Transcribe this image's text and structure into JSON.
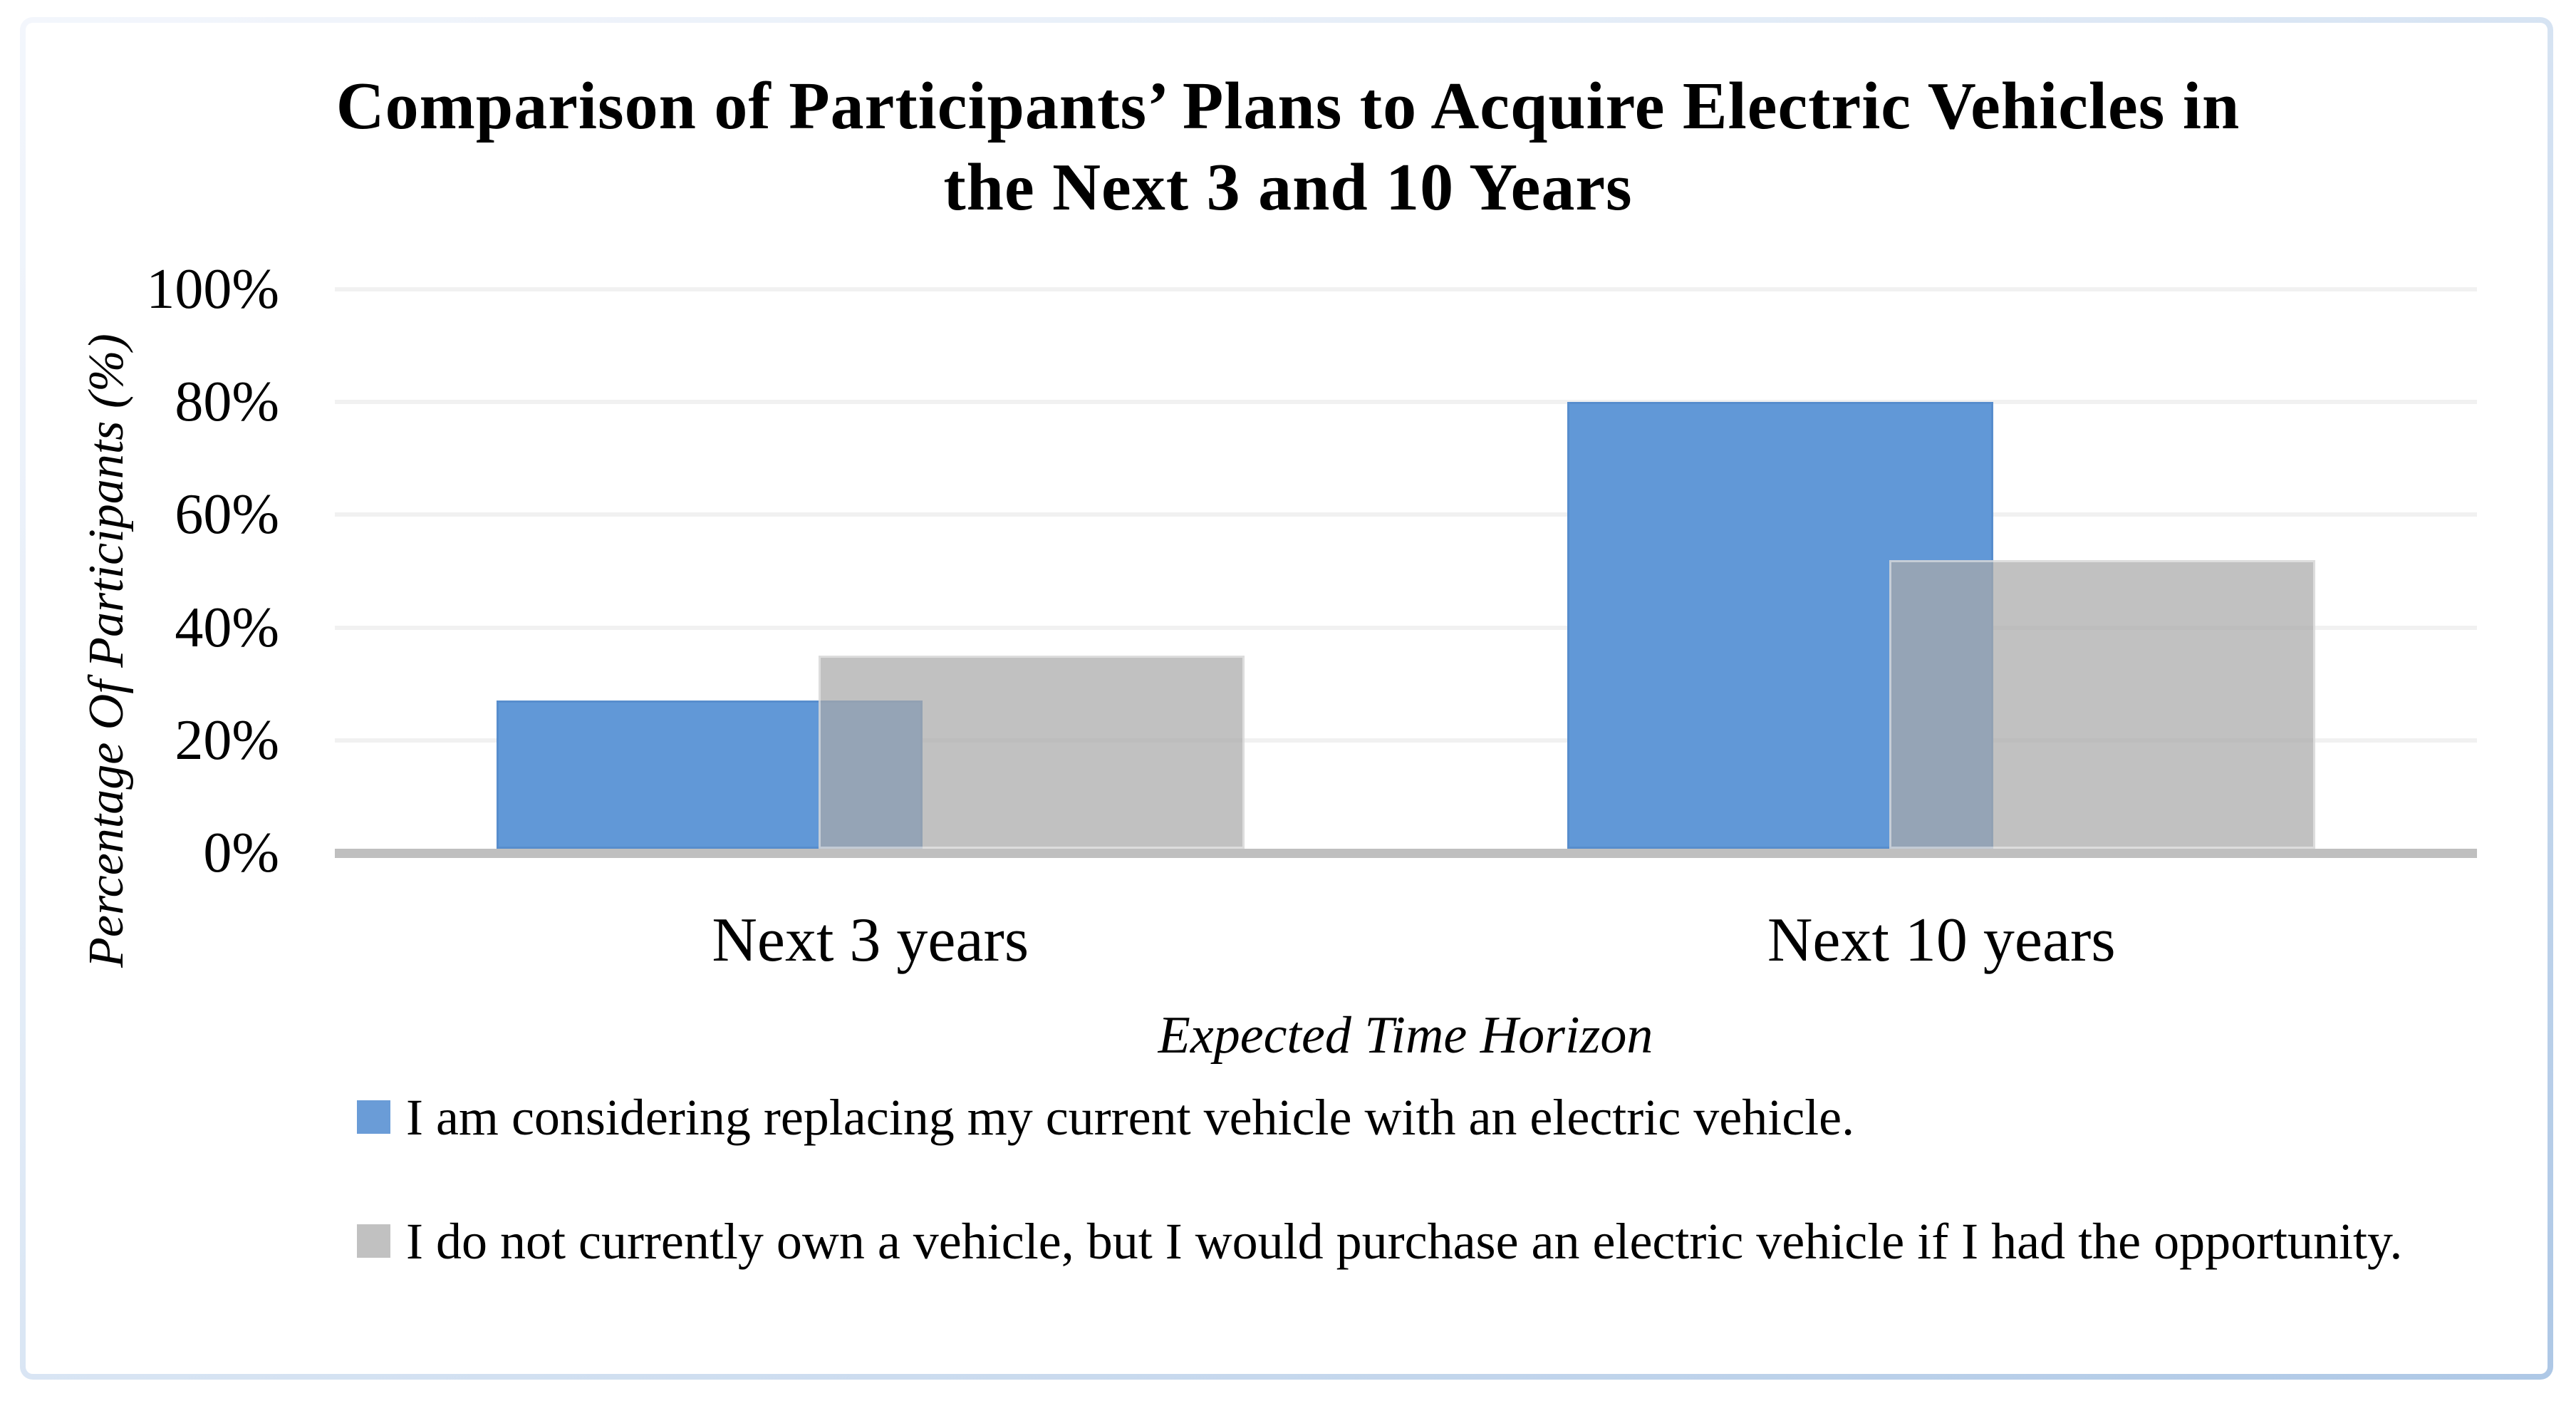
{
  "chart": {
    "title_line1": "Comparison of Participants’ Plans to Acquire Electric Vehicles in",
    "title_line2": "the Next 3 and 10 Years"
  },
  "chart_data": {
    "type": "bar",
    "title": "Comparison of Participants’ Plans to Acquire Electric Vehicles in the Next 3 and 10 Years",
    "categories": [
      "Next 3 years",
      "Next 10 years"
    ],
    "series": [
      {
        "name": "I am considering replacing my current vehicle with an electric vehicle.",
        "values": [
          27,
          80
        ],
        "color": "#6A9CD7",
        "fill": "rgba(89,146,213,0.95)"
      },
      {
        "name": "I do not currently own a vehicle, but I would purchase an electric vehicle if I had the opportunity.",
        "values": [
          35,
          52
        ],
        "color": "#C1C1C1",
        "fill": "rgba(169,169,169,0.72)"
      }
    ],
    "xlabel": "Expected Time Horizon",
    "ylabel": "Percentage Of Participants (%)",
    "ylim": [
      0,
      100
    ],
    "yticks": [
      "0%",
      "20%",
      "40%",
      "60%",
      "80%",
      "100%"
    ],
    "ytick_step": 20,
    "grid": true,
    "legend_position": "bottom-left",
    "bars_overlap": true
  },
  "colors": {
    "axis_line": "#BFBFBF",
    "gridline": "#F1F1F1",
    "frame_border": "#BCD2E8",
    "text": "#000000",
    "background": "#FFFFFF"
  }
}
